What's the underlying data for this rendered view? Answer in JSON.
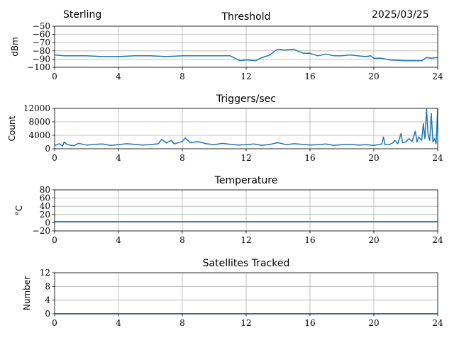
{
  "header": {
    "site": "Sterling",
    "date": "2025/03/25"
  },
  "style": {
    "line_color": "#1f77b4",
    "grid_color": "#b0b0b0"
  },
  "chart_data": [
    {
      "id": "threshold",
      "type": "line",
      "title": "Threshold",
      "xlabel": "",
      "ylabel": "dBm",
      "xlim": [
        0,
        24
      ],
      "ylim": [
        -100,
        -50
      ],
      "xticks": [
        0,
        4,
        8,
        12,
        16,
        20,
        24
      ],
      "yticks": [
        -100,
        -90,
        -80,
        -70,
        -60,
        -50
      ],
      "ytick_labels": [
        "−100",
        "−90",
        "−80",
        "−70",
        "−60",
        "−50"
      ],
      "grid": true,
      "series": [
        {
          "x": [
            0,
            0.6,
            1,
            2,
            3,
            4,
            5,
            6,
            7,
            8,
            9,
            10,
            11,
            11.4,
            11.6,
            12,
            12.6,
            13,
            13.5,
            13.8,
            14,
            14.4,
            15,
            15.2,
            15.6,
            16,
            16.5,
            17,
            17.5,
            18,
            18.5,
            19,
            19.5,
            19.8,
            20,
            20.5,
            21,
            22,
            23,
            23.3,
            23.6,
            24
          ],
          "y": [
            -85,
            -86,
            -86,
            -86,
            -87,
            -87,
            -86,
            -86,
            -87,
            -86,
            -86,
            -86,
            -86,
            -90,
            -92,
            -91,
            -92,
            -88,
            -85,
            -80,
            -78,
            -79,
            -78,
            -80,
            -83,
            -83,
            -86,
            -84,
            -86,
            -86,
            -85,
            -86,
            -87,
            -86,
            -89,
            -89,
            -91,
            -92,
            -92,
            -88,
            -89,
            -88
          ]
        }
      ]
    },
    {
      "id": "triggers",
      "type": "line",
      "title": "Triggers/sec",
      "xlabel": "",
      "ylabel": "Count",
      "xlim": [
        0,
        24
      ],
      "ylim": [
        0,
        12000
      ],
      "xticks": [
        0,
        4,
        8,
        12,
        16,
        20,
        24
      ],
      "yticks": [
        0,
        4000,
        8000,
        12000
      ],
      "ytick_labels": [
        "0",
        "4000",
        "8000",
        "12000"
      ],
      "grid": true,
      "series": [
        {
          "x": [
            0,
            0.3,
            0.5,
            0.6,
            0.8,
            1.2,
            1.5,
            2,
            2.5,
            3,
            3.5,
            4,
            4.5,
            5,
            5.5,
            6,
            6.5,
            6.7,
            7,
            7.3,
            7.5,
            8,
            8.2,
            8.5,
            9,
            9.5,
            10,
            10.5,
            11,
            11.5,
            12,
            12.5,
            13,
            13.5,
            14,
            14.5,
            15,
            15.5,
            16,
            16.5,
            17,
            17.5,
            18,
            18.5,
            19,
            19.5,
            20,
            20.5,
            20.6,
            20.7,
            21,
            21.2,
            21.3,
            21.5,
            21.7,
            21.8,
            22,
            22.2,
            22.4,
            22.6,
            22.7,
            22.8,
            23,
            23.1,
            23.2,
            23.3,
            23.4,
            23.5,
            23.6,
            23.7,
            23.8,
            23.9,
            24
          ],
          "y": [
            1000,
            1500,
            800,
            2000,
            1200,
            900,
            1600,
            1100,
            1300,
            1400,
            1000,
            1200,
            1500,
            1300,
            1100,
            1200,
            1500,
            2800,
            1700,
            2500,
            1400,
            2200,
            3200,
            1800,
            2100,
            1500,
            1200,
            1600,
            1300,
            1100,
            1200,
            1400,
            1000,
            1300,
            1800,
            1200,
            1500,
            1300,
            1100,
            1200,
            1400,
            1000,
            1200,
            1300,
            1100,
            1200,
            1000,
            1400,
            3500,
            1200,
            1300,
            1800,
            2500,
            1500,
            4500,
            1800,
            2000,
            3000,
            2200,
            5200,
            2000,
            3500,
            2500,
            7500,
            3000,
            11800,
            4000,
            2500,
            10500,
            2000,
            3000,
            1500,
            12000
          ]
        }
      ]
    },
    {
      "id": "temperature",
      "type": "line",
      "title": "Temperature",
      "xlabel": "",
      "ylabel": "°C",
      "xlim": [
        0,
        24
      ],
      "ylim": [
        -20,
        80
      ],
      "xticks": [
        0,
        4,
        8,
        12,
        16,
        20,
        24
      ],
      "yticks": [
        -20,
        0,
        20,
        40,
        60,
        80
      ],
      "ytick_labels": [
        "−20",
        "0",
        "20",
        "40",
        "60",
        "80"
      ],
      "grid": true,
      "series": [
        {
          "x": [
            0,
            24
          ],
          "y": [
            3,
            3
          ]
        }
      ]
    },
    {
      "id": "satellites",
      "type": "line",
      "title": "Satellites Tracked",
      "xlabel": "",
      "ylabel": "Number",
      "xlim": [
        0,
        24
      ],
      "ylim": [
        0,
        12
      ],
      "xticks": [
        0,
        4,
        8,
        12,
        16,
        20,
        24
      ],
      "yticks": [
        0,
        4,
        8,
        12
      ],
      "ytick_labels": [
        "0",
        "4",
        "8",
        "12"
      ],
      "grid": true,
      "series": [
        {
          "x": [
            0,
            24
          ],
          "y": [
            0,
            0
          ]
        }
      ]
    }
  ]
}
